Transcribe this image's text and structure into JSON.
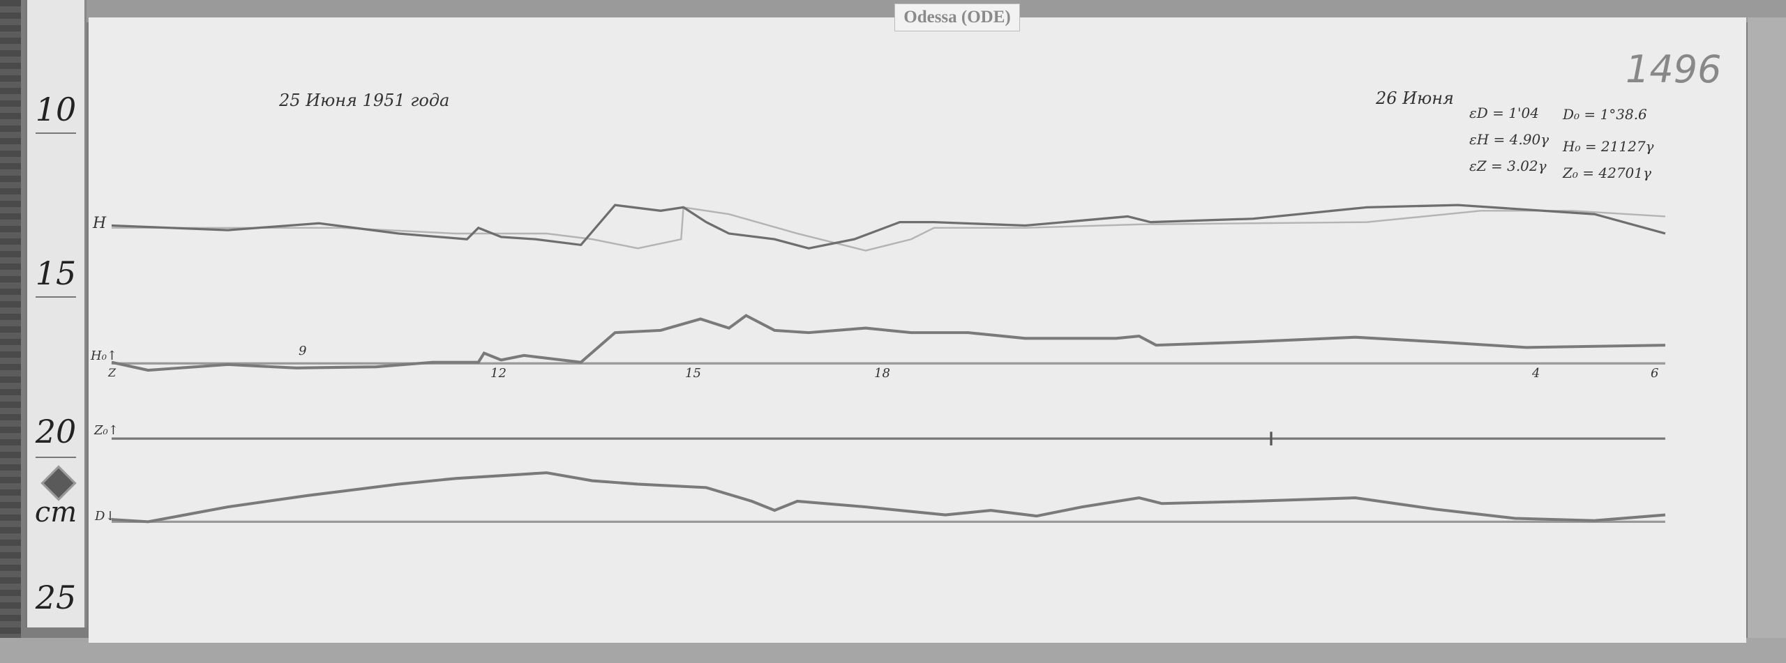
{
  "station_label": "Odessa (ODE)",
  "sheet_number": "1496",
  "date_left": "25 Июня   1951 года",
  "date_right": "26 Июня",
  "scale_values": {
    "eD": "εD = 1'04",
    "eH": "εH = 4.90γ",
    "eZ": "εZ = 3.02γ",
    "D0": "D₀ = 1°38.6",
    "H0": "H₀ = 21127γ",
    "Z0": "Z₀ = 42701γ"
  },
  "trace_labels": {
    "H": "H",
    "H_base": "H₀↑",
    "Z_time": "Z",
    "Z_base": "Z₀↑",
    "D_base": "D↓"
  },
  "hour_marks": [
    "9",
    "12",
    "15",
    "18",
    "4",
    "6"
  ],
  "ruler": {
    "marks": [
      "10",
      "15",
      "20",
      "25"
    ],
    "unit": "cm"
  }
}
